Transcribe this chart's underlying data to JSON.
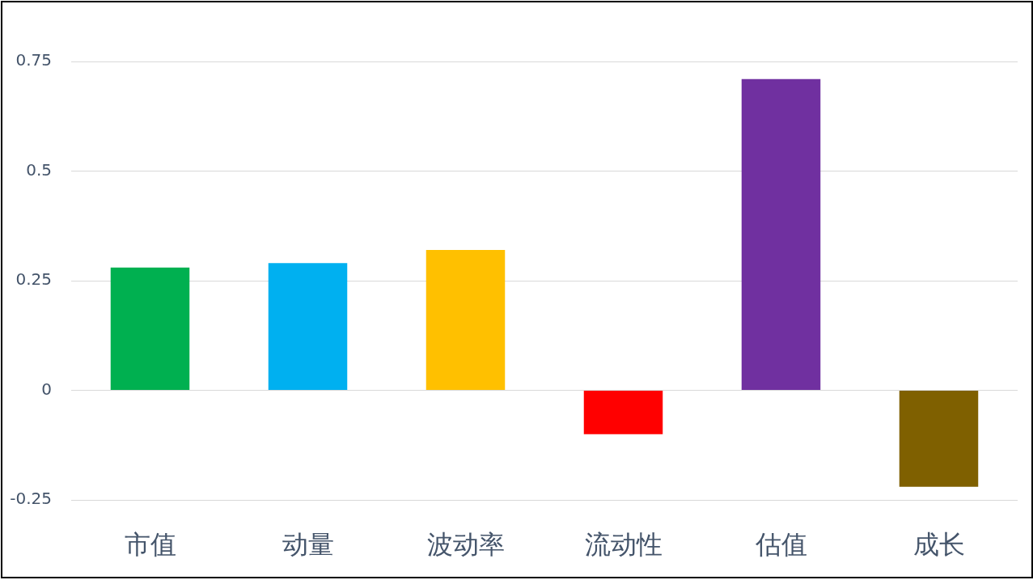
{
  "chart_data": {
    "type": "bar",
    "categories": [
      "市值",
      "动量",
      "波动率",
      "流动性",
      "估值",
      "成长"
    ],
    "values": [
      0.28,
      0.29,
      0.32,
      -0.1,
      0.71,
      -0.22
    ],
    "colors": [
      "#00b050",
      "#00b0f0",
      "#ffc000",
      "#ff0000",
      "#7030a0",
      "#7f6000"
    ],
    "ylim": [
      -0.25,
      0.75
    ],
    "yticks": [
      -0.25,
      0,
      0.25,
      0.5,
      0.75
    ],
    "grid": "y"
  }
}
